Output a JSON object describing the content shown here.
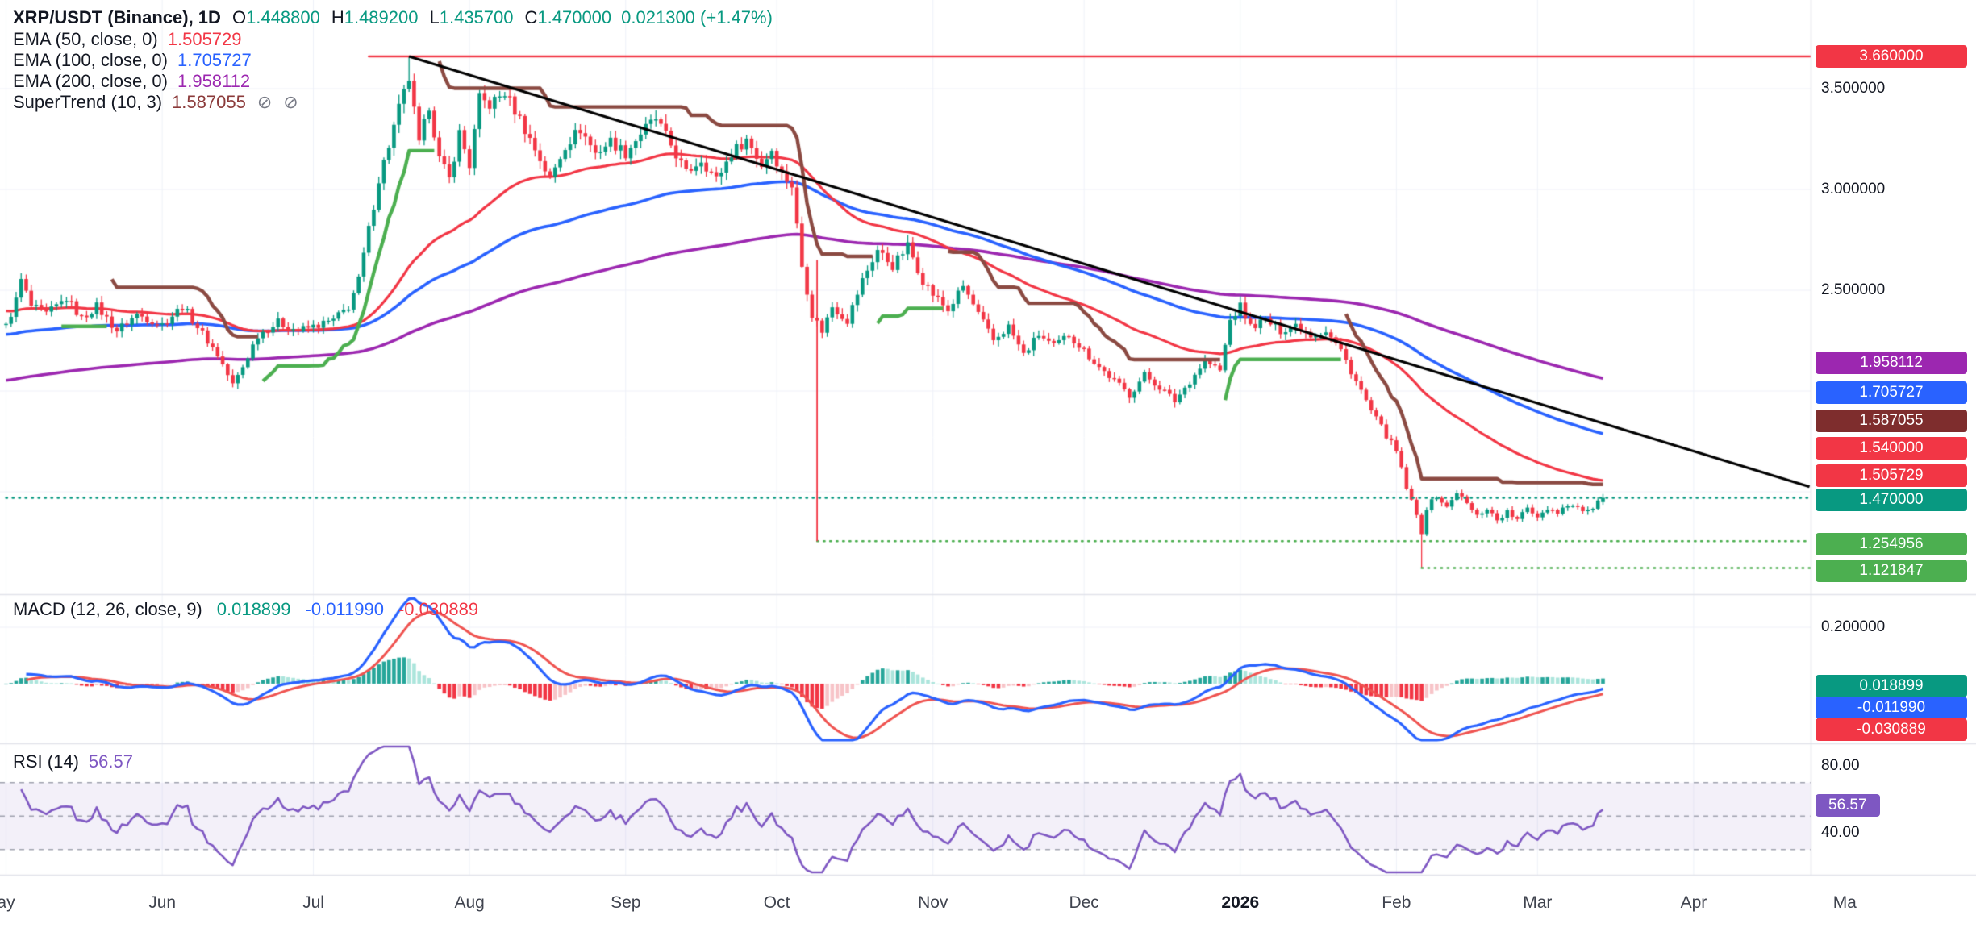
{
  "header": {
    "symbol": "XRP/USDT (Binance), 1D",
    "o_label": "O",
    "o_value": "1.448800",
    "h_label": "H",
    "h_value": "1.489200",
    "l_label": "L",
    "l_value": "1.435700",
    "c_label": "C",
    "c_value": "1.470000",
    "change": "0.021300 (+1.47%)"
  },
  "icons": {
    "hidden_icon": "⊘"
  },
  "indicators": {
    "ema50": {
      "label": "EMA (50, close, 0)",
      "value": "1.505729"
    },
    "ema100": {
      "label": "EMA (100, close, 0)",
      "value": "1.705727"
    },
    "ema200": {
      "label": "EMA (200, close, 0)",
      "value": "1.958112"
    },
    "supertrend": {
      "label": "SuperTrend (10, 3)",
      "value": "1.587055"
    },
    "macd": {
      "label": "MACD (12, 26, close, 9)",
      "hist_value": "0.018899",
      "macd_value": "-0.011990",
      "signal_value": "-0.030889"
    },
    "rsi": {
      "label": "RSI (14)",
      "value": "56.57"
    }
  },
  "price_axis": {
    "ticks": [
      {
        "text": "3.500000",
        "price": 3.5
      },
      {
        "text": "3.000000",
        "price": 3.0
      },
      {
        "text": "2.500000",
        "price": 2.5
      }
    ],
    "badges": [
      {
        "text": "3.660000",
        "bg": "#f23645"
      },
      {
        "text": "1.958112",
        "bg": "#9c27b0"
      },
      {
        "text": "1.705727",
        "bg": "#2962ff"
      },
      {
        "text": "1.587055",
        "bg": "#7e2d2d"
      },
      {
        "text": "1.540000",
        "bg": "#f23645"
      },
      {
        "text": "1.505729",
        "bg": "#f23645"
      },
      {
        "text": "1.470000",
        "bg": "#089981"
      },
      {
        "text": "1.254956",
        "bg": "#4caf50"
      },
      {
        "text": "1.121847",
        "bg": "#4caf50"
      }
    ]
  },
  "macd_axis": {
    "tick": {
      "text": "0.200000",
      "value": 0.2
    },
    "badges": [
      {
        "text": "0.018899",
        "bg": "#089981"
      },
      {
        "text": "-0.011990",
        "bg": "#2962ff"
      },
      {
        "text": "-0.030889",
        "bg": "#f23645"
      }
    ]
  },
  "rsi_axis": {
    "ticks": [
      {
        "text": "80.00",
        "value": 80
      },
      {
        "text": "40.00",
        "value": 40
      }
    ],
    "badge": {
      "text": "56.57",
      "bg": "#7e57c2"
    }
  },
  "time_axis": {
    "ticks": [
      {
        "label": "ay",
        "day": 0
      },
      {
        "label": "Jun",
        "day": 31
      },
      {
        "label": "Jul",
        "day": 61
      },
      {
        "label": "Aug",
        "day": 92
      },
      {
        "label": "Sep",
        "day": 123
      },
      {
        "label": "Oct",
        "day": 153
      },
      {
        "label": "Nov",
        "day": 184
      },
      {
        "label": "Dec",
        "day": 214
      },
      {
        "label": "2026",
        "day": 245,
        "bold": true
      },
      {
        "label": "Feb",
        "day": 276
      },
      {
        "label": "Mar",
        "day": 304
      },
      {
        "label": "Apr",
        "day": 335
      },
      {
        "label": "Ma",
        "day": 365
      }
    ]
  },
  "chart_data": {
    "type": "candlestick",
    "title": "XRP/USDT (Binance), 1D",
    "timeframe": "1D",
    "visible_price_range": [
      1.0,
      3.85
    ],
    "price_anchors": [
      [
        0,
        2.32
      ],
      [
        2,
        2.45
      ],
      [
        3,
        2.55
      ],
      [
        5,
        2.42
      ],
      [
        8,
        2.38
      ],
      [
        12,
        2.46
      ],
      [
        15,
        2.36
      ],
      [
        18,
        2.42
      ],
      [
        22,
        2.3
      ],
      [
        26,
        2.38
      ],
      [
        31,
        2.33
      ],
      [
        35,
        2.42
      ],
      [
        38,
        2.32
      ],
      [
        42,
        2.18
      ],
      [
        45,
        2.03
      ],
      [
        47,
        2.12
      ],
      [
        50,
        2.28
      ],
      [
        54,
        2.34
      ],
      [
        58,
        2.3
      ],
      [
        61,
        2.32
      ],
      [
        65,
        2.35
      ],
      [
        68,
        2.42
      ],
      [
        70,
        2.55
      ],
      [
        72,
        2.8
      ],
      [
        74,
        3.05
      ],
      [
        76,
        3.22
      ],
      [
        78,
        3.4
      ],
      [
        80,
        3.55
      ],
      [
        82,
        3.22
      ],
      [
        84,
        3.42
      ],
      [
        86,
        3.15
      ],
      [
        88,
        3.05
      ],
      [
        90,
        3.28
      ],
      [
        92,
        3.12
      ],
      [
        94,
        3.45
      ],
      [
        96,
        3.42
      ],
      [
        99,
        3.48
      ],
      [
        102,
        3.35
      ],
      [
        105,
        3.2
      ],
      [
        108,
        3.05
      ],
      [
        111,
        3.22
      ],
      [
        114,
        3.3
      ],
      [
        117,
        3.18
      ],
      [
        120,
        3.24
      ],
      [
        123,
        3.18
      ],
      [
        126,
        3.28
      ],
      [
        129,
        3.35
      ],
      [
        132,
        3.22
      ],
      [
        135,
        3.08
      ],
      [
        138,
        3.15
      ],
      [
        141,
        3.05
      ],
      [
        144,
        3.18
      ],
      [
        147,
        3.25
      ],
      [
        150,
        3.12
      ],
      [
        152,
        3.2
      ],
      [
        154,
        3.08
      ],
      [
        156,
        3.02
      ],
      [
        158,
        2.62
      ],
      [
        160,
        2.38
      ],
      [
        162,
        2.3
      ],
      [
        164,
        2.42
      ],
      [
        167,
        2.35
      ],
      [
        170,
        2.55
      ],
      [
        173,
        2.7
      ],
      [
        176,
        2.62
      ],
      [
        179,
        2.72
      ],
      [
        182,
        2.55
      ],
      [
        184,
        2.48
      ],
      [
        187,
        2.4
      ],
      [
        190,
        2.52
      ],
      [
        193,
        2.38
      ],
      [
        196,
        2.25
      ],
      [
        199,
        2.32
      ],
      [
        202,
        2.18
      ],
      [
        205,
        2.28
      ],
      [
        208,
        2.22
      ],
      [
        211,
        2.28
      ],
      [
        214,
        2.2
      ],
      [
        217,
        2.12
      ],
      [
        220,
        2.05
      ],
      [
        223,
        1.98
      ],
      [
        226,
        2.08
      ],
      [
        229,
        2.02
      ],
      [
        232,
        1.95
      ],
      [
        235,
        2.05
      ],
      [
        238,
        2.15
      ],
      [
        241,
        2.1
      ],
      [
        243,
        2.35
      ],
      [
        245,
        2.42
      ],
      [
        247,
        2.32
      ],
      [
        250,
        2.35
      ],
      [
        253,
        2.3
      ],
      [
        256,
        2.33
      ],
      [
        259,
        2.28
      ],
      [
        262,
        2.3
      ],
      [
        265,
        2.2
      ],
      [
        268,
        2.05
      ],
      [
        271,
        1.9
      ],
      [
        274,
        1.78
      ],
      [
        276,
        1.7
      ],
      [
        278,
        1.52
      ],
      [
        280,
        1.38
      ],
      [
        281,
        1.3
      ],
      [
        282,
        1.42
      ],
      [
        284,
        1.48
      ],
      [
        286,
        1.42
      ],
      [
        288,
        1.5
      ],
      [
        290,
        1.44
      ],
      [
        292,
        1.38
      ],
      [
        294,
        1.42
      ],
      [
        296,
        1.36
      ],
      [
        298,
        1.4
      ],
      [
        300,
        1.36
      ],
      [
        302,
        1.42
      ],
      [
        304,
        1.38
      ],
      [
        306,
        1.42
      ],
      [
        308,
        1.4
      ],
      [
        310,
        1.44
      ],
      [
        312,
        1.42
      ],
      [
        314,
        1.4
      ],
      [
        316,
        1.45
      ],
      [
        317,
        1.47
      ]
    ],
    "last_candle": {
      "open": 1.4488,
      "high": 1.4892,
      "low": 1.4357,
      "close": 1.47
    },
    "peak": {
      "day": 80,
      "high": 3.66
    },
    "trough": {
      "day": 281,
      "low": 1.121847
    },
    "levels": [
      {
        "price": 3.66,
        "style": "solid",
        "color": "#f23645",
        "from_day": 72
      },
      {
        "price": 1.47,
        "style": "dotted",
        "color": "#089981",
        "from_day": 0
      },
      {
        "price": 1.254956,
        "style": "dotted",
        "color": "#4caf50",
        "from_day": 161
      },
      {
        "price": 1.121847,
        "style": "dotted",
        "color": "#4caf50",
        "from_day": 281
      }
    ],
    "trendline": {
      "from": {
        "day": 80,
        "price": 3.66
      },
      "to": {
        "day": 358,
        "price": 1.525
      },
      "color": "#000000"
    },
    "vline": {
      "day": 161,
      "from_price": 2.65,
      "to_price": 1.254956,
      "color": "#f23645"
    },
    "indicator_params": {
      "ema": [
        50,
        100,
        200
      ],
      "supertrend": {
        "atr": 10,
        "mult": 3
      },
      "macd": {
        "fast": 12,
        "slow": 26,
        "signal": 9
      },
      "rsi": 14
    },
    "macd_scale_tick": 0.2,
    "rsi_bands": [
      70,
      50,
      30
    ],
    "colors": {
      "up": "#089981",
      "down": "#f23645",
      "ema50": "#f23645",
      "ema100": "#2962ff",
      "ema200": "#9c27b0",
      "st_up": "#4caf50",
      "st_down": "#8b4a42",
      "macd": "#2962ff",
      "signal": "#ef5350",
      "rsi": "#7e57c2",
      "grid": "#eef1f8",
      "divider": "#e1e3ea"
    }
  }
}
